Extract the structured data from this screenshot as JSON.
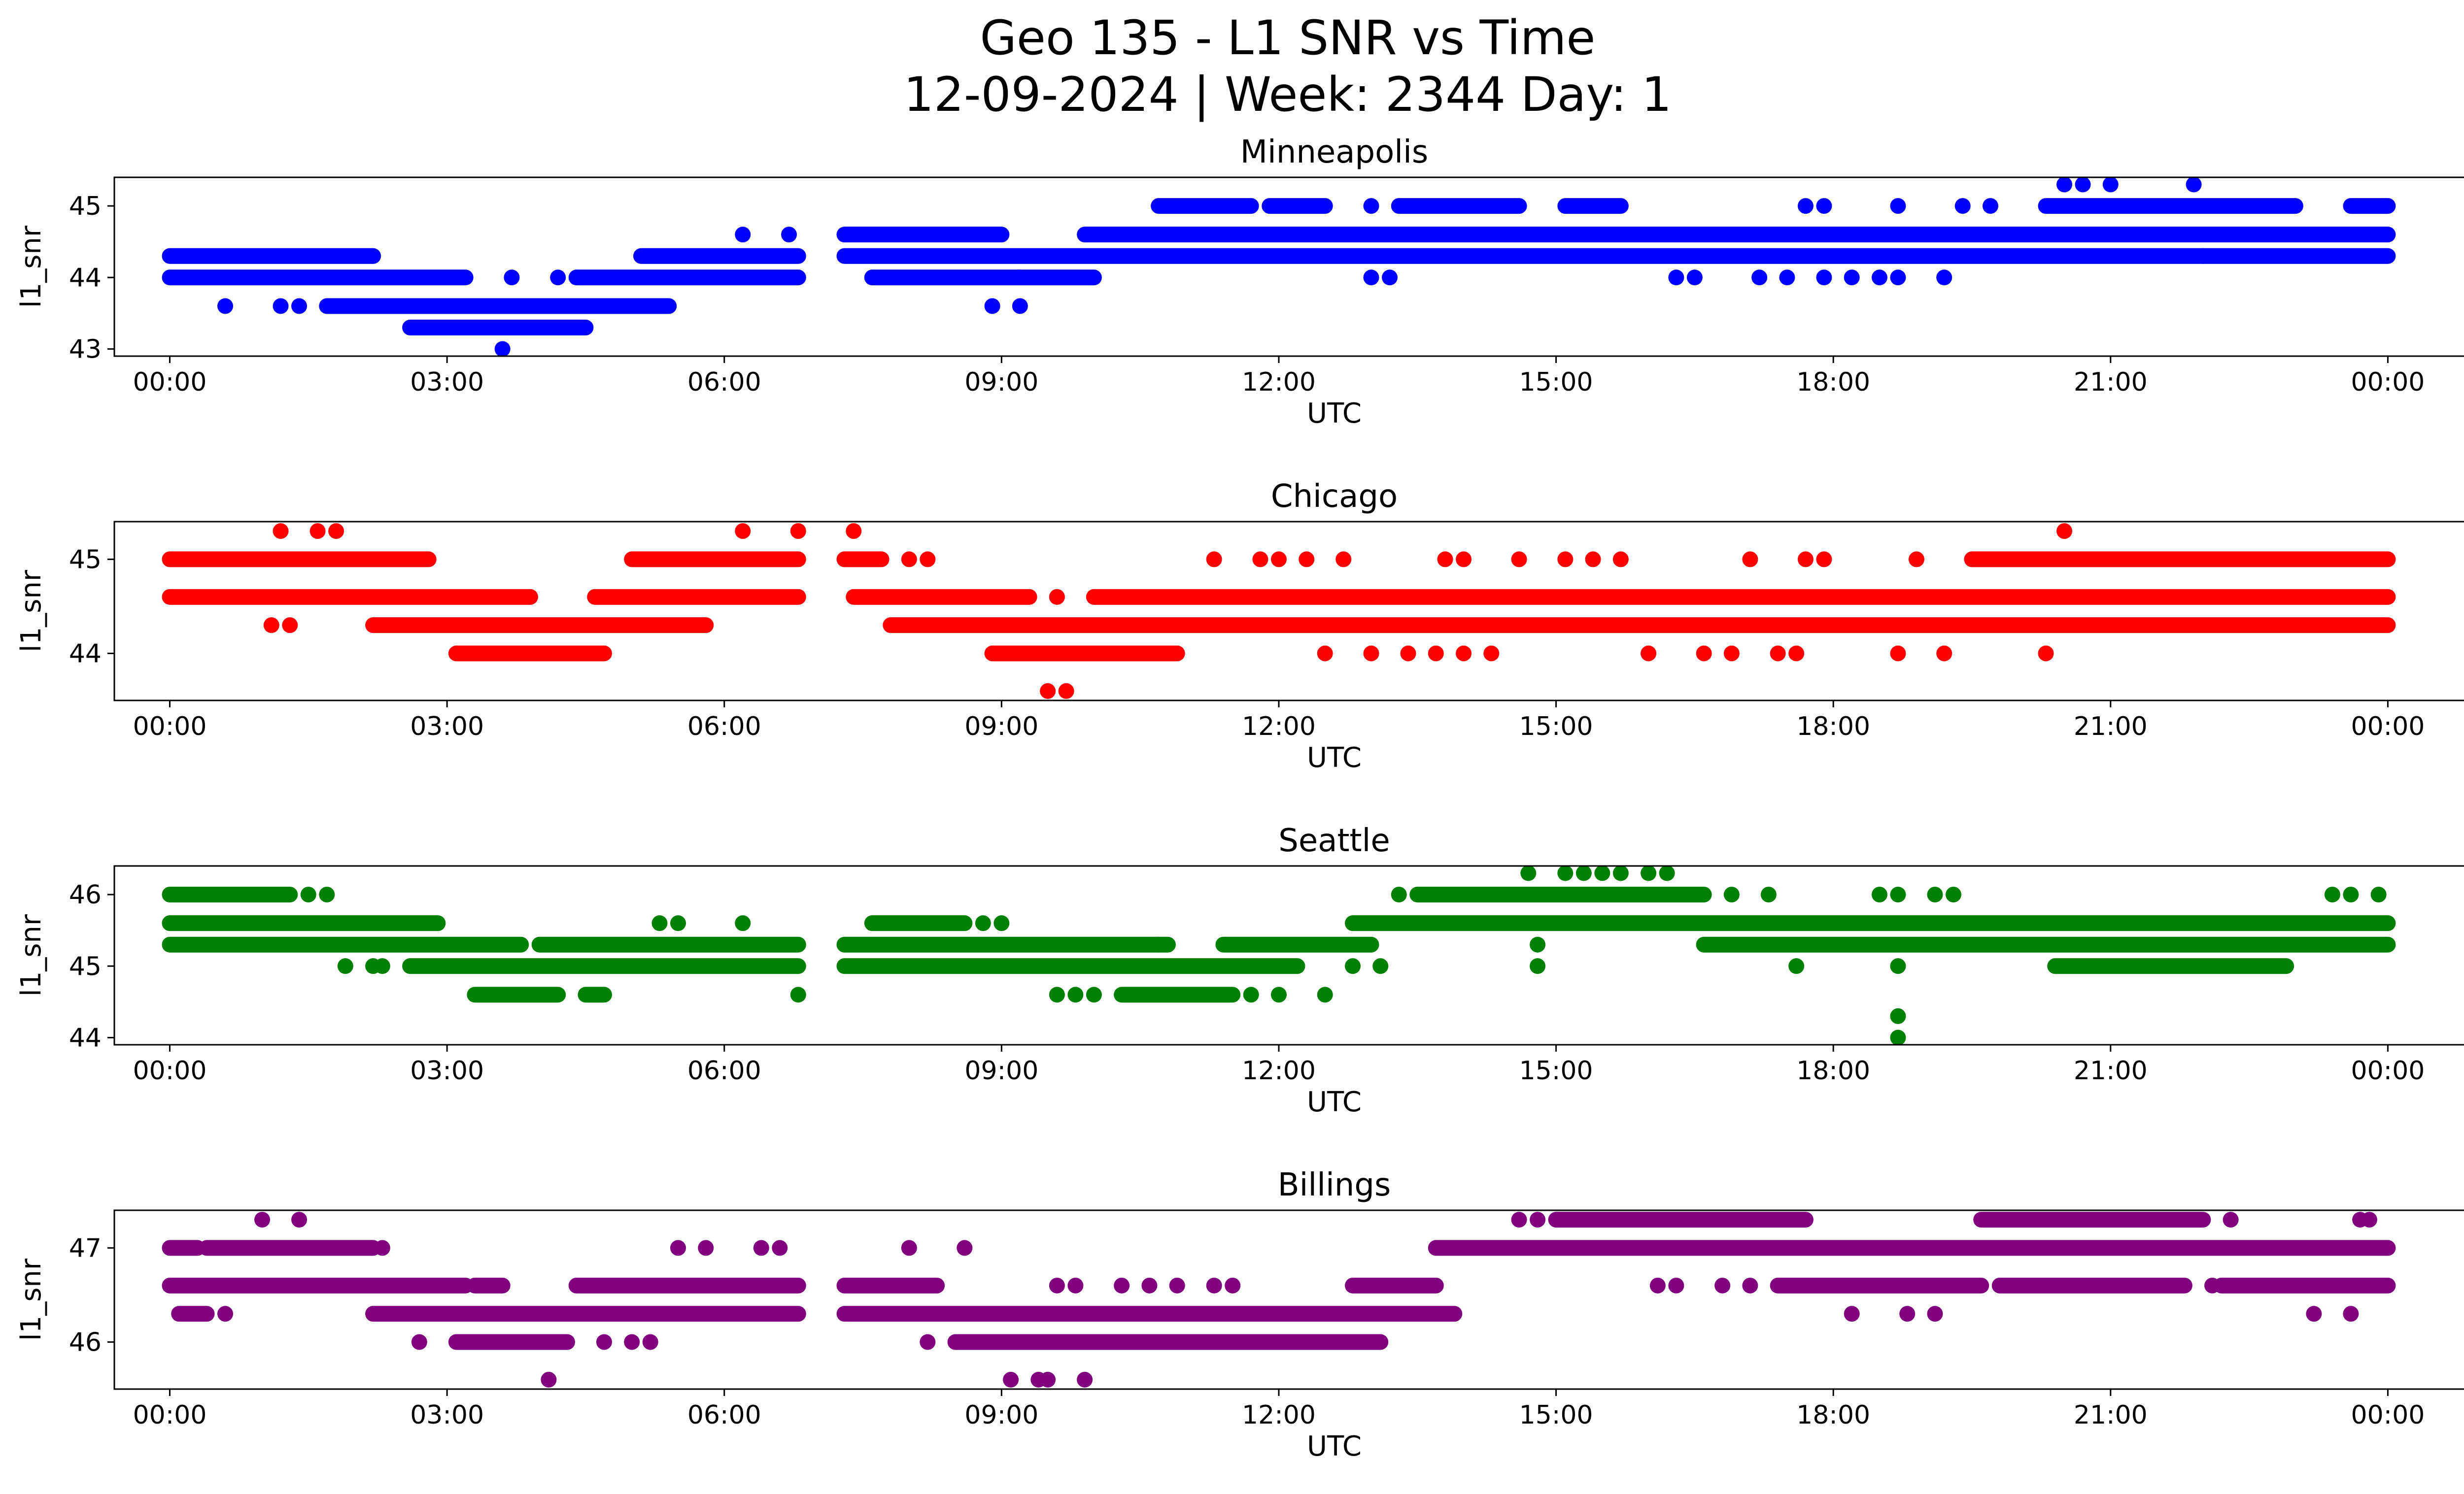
{
  "figure": {
    "title_line1": "Geo 135 - L1 SNR vs Time",
    "title_line2": "12-09-2024 | Week: 2344 Day: 1"
  },
  "chart_data": [
    {
      "type": "scatter",
      "title": "Minneapolis",
      "xlabel": "UTC",
      "ylabel": "l1_snr",
      "color": "#0000ff",
      "x_unit": "hours UTC (0 = 00:00 on 12-09-2024)",
      "xlim": [
        -0.6,
        25.8
      ],
      "ylim": [
        42.9,
        45.4
      ],
      "x_ticks": [
        "00:00",
        "03:00",
        "06:00",
        "09:00",
        "12:00",
        "15:00",
        "18:00",
        "21:00",
        "00:00"
      ],
      "y_ticks": [
        43,
        44,
        45
      ],
      "segments": [
        {
          "y": 44.3,
          "x": [
            [
              0.0,
              2.2
            ],
            [
              5.1,
              6.8
            ],
            [
              7.3,
              24.0
            ]
          ]
        },
        {
          "y": 44.0,
          "x": [
            [
              0.0,
              3.2
            ],
            [
              4.4,
              6.8
            ],
            [
              7.6,
              9.2
            ],
            [
              9.2,
              10.0
            ]
          ]
        },
        {
          "y": 43.6,
          "x": [
            [
              1.7,
              5.4
            ]
          ]
        },
        {
          "y": 43.3,
          "x": [
            [
              2.6,
              4.5
            ]
          ]
        },
        {
          "y": 44.6,
          "x": [
            [
              7.3,
              9.0
            ],
            [
              9.9,
              24.0
            ]
          ]
        },
        {
          "y": 45.0,
          "x": [
            [
              10.7,
              11.7
            ],
            [
              11.9,
              12.5
            ],
            [
              13.3,
              14.6
            ],
            [
              15.1,
              15.7
            ],
            [
              20.3,
              23.0
            ],
            [
              23.6,
              24.0
            ]
          ]
        }
      ],
      "points": [
        {
          "x": 0.6,
          "y": 43.6
        },
        {
          "x": 1.2,
          "y": 43.6
        },
        {
          "x": 1.4,
          "y": 43.6
        },
        {
          "x": 3.6,
          "y": 43.0
        },
        {
          "x": 3.7,
          "y": 44.0
        },
        {
          "x": 4.2,
          "y": 44.0
        },
        {
          "x": 6.2,
          "y": 44.6
        },
        {
          "x": 6.7,
          "y": 44.6
        },
        {
          "x": 8.9,
          "y": 43.6
        },
        {
          "x": 9.2,
          "y": 43.6
        },
        {
          "x": 13.0,
          "y": 45.0
        },
        {
          "x": 13.0,
          "y": 44.0
        },
        {
          "x": 13.2,
          "y": 44.0
        },
        {
          "x": 16.3,
          "y": 44.0
        },
        {
          "x": 16.5,
          "y": 44.0
        },
        {
          "x": 17.2,
          "y": 44.0
        },
        {
          "x": 17.5,
          "y": 44.0
        },
        {
          "x": 17.9,
          "y": 44.0
        },
        {
          "x": 18.2,
          "y": 44.0
        },
        {
          "x": 18.5,
          "y": 44.0
        },
        {
          "x": 18.7,
          "y": 44.0
        },
        {
          "x": 19.2,
          "y": 44.0
        },
        {
          "x": 17.7,
          "y": 45.0
        },
        {
          "x": 17.9,
          "y": 45.0
        },
        {
          "x": 18.7,
          "y": 45.0
        },
        {
          "x": 19.4,
          "y": 45.0
        },
        {
          "x": 19.7,
          "y": 45.0
        },
        {
          "x": 20.5,
          "y": 45.3
        },
        {
          "x": 20.7,
          "y": 45.3
        },
        {
          "x": 21.0,
          "y": 45.3
        },
        {
          "x": 21.9,
          "y": 45.3
        },
        {
          "x": 22.0,
          "y": 44.3
        }
      ]
    },
    {
      "type": "scatter",
      "title": "Chicago",
      "xlabel": "UTC",
      "ylabel": "l1_snr",
      "color": "#ff0000",
      "x_unit": "hours UTC (0 = 00:00 on 12-09-2024)",
      "xlim": [
        -0.6,
        25.8
      ],
      "ylim": [
        43.5,
        45.4
      ],
      "x_ticks": [
        "00:00",
        "03:00",
        "06:00",
        "09:00",
        "12:00",
        "15:00",
        "18:00",
        "21:00",
        "00:00"
      ],
      "y_ticks": [
        44,
        45
      ],
      "segments": [
        {
          "y": 45.0,
          "x": [
            [
              0.0,
              2.8
            ],
            [
              5.0,
              6.8
            ],
            [
              7.3,
              7.7
            ]
          ]
        },
        {
          "y": 44.6,
          "x": [
            [
              0.0,
              3.9
            ],
            [
              4.6,
              6.8
            ],
            [
              7.4,
              9.3
            ],
            [
              10.0,
              24.0
            ]
          ]
        },
        {
          "y": 44.3,
          "x": [
            [
              2.2,
              5.8
            ],
            [
              7.8,
              24.0
            ]
          ]
        },
        {
          "y": 44.0,
          "x": [
            [
              3.1,
              4.7
            ],
            [
              8.9,
              10.9
            ]
          ]
        },
        {
          "y": 45.0,
          "x": [
            [
              19.5,
              24.0
            ]
          ]
        }
      ],
      "points": [
        {
          "x": 1.2,
          "y": 45.3
        },
        {
          "x": 1.6,
          "y": 45.3
        },
        {
          "x": 1.8,
          "y": 45.3
        },
        {
          "x": 1.1,
          "y": 44.3
        },
        {
          "x": 1.3,
          "y": 44.3
        },
        {
          "x": 6.2,
          "y": 45.3
        },
        {
          "x": 6.8,
          "y": 45.3
        },
        {
          "x": 7.4,
          "y": 45.3
        },
        {
          "x": 8.0,
          "y": 45.0
        },
        {
          "x": 8.2,
          "y": 45.0
        },
        {
          "x": 9.5,
          "y": 43.6
        },
        {
          "x": 9.7,
          "y": 43.6
        },
        {
          "x": 9.6,
          "y": 44.6
        },
        {
          "x": 11.3,
          "y": 45.0
        },
        {
          "x": 11.8,
          "y": 45.0
        },
        {
          "x": 12.0,
          "y": 45.0
        },
        {
          "x": 12.3,
          "y": 45.0
        },
        {
          "x": 12.7,
          "y": 45.0
        },
        {
          "x": 13.8,
          "y": 45.0
        },
        {
          "x": 14.0,
          "y": 45.0
        },
        {
          "x": 14.6,
          "y": 45.0
        },
        {
          "x": 15.1,
          "y": 45.0
        },
        {
          "x": 15.4,
          "y": 45.0
        },
        {
          "x": 15.7,
          "y": 45.0
        },
        {
          "x": 17.1,
          "y": 45.0
        },
        {
          "x": 17.7,
          "y": 45.0
        },
        {
          "x": 17.9,
          "y": 45.0
        },
        {
          "x": 18.9,
          "y": 45.0
        },
        {
          "x": 12.5,
          "y": 44.0
        },
        {
          "x": 13.0,
          "y": 44.0
        },
        {
          "x": 13.4,
          "y": 44.0
        },
        {
          "x": 13.7,
          "y": 44.0
        },
        {
          "x": 14.0,
          "y": 44.0
        },
        {
          "x": 14.3,
          "y": 44.0
        },
        {
          "x": 16.0,
          "y": 44.0
        },
        {
          "x": 16.6,
          "y": 44.0
        },
        {
          "x": 16.9,
          "y": 44.0
        },
        {
          "x": 17.4,
          "y": 44.0
        },
        {
          "x": 17.6,
          "y": 44.0
        },
        {
          "x": 18.7,
          "y": 44.0
        },
        {
          "x": 19.2,
          "y": 44.0
        },
        {
          "x": 20.3,
          "y": 44.0
        },
        {
          "x": 20.5,
          "y": 45.3
        }
      ]
    },
    {
      "type": "scatter",
      "title": "Seattle",
      "xlabel": "UTC",
      "ylabel": "l1_snr",
      "color": "#008000",
      "x_unit": "hours UTC (0 = 00:00 on 12-09-2024)",
      "xlim": [
        -0.6,
        25.8
      ],
      "ylim": [
        43.9,
        46.4
      ],
      "x_ticks": [
        "00:00",
        "03:00",
        "06:00",
        "09:00",
        "12:00",
        "15:00",
        "18:00",
        "21:00",
        "00:00"
      ],
      "y_ticks": [
        44,
        45,
        46
      ],
      "segments": [
        {
          "y": 46.0,
          "x": [
            [
              0.0,
              1.3
            ],
            [
              13.5,
              16.6
            ]
          ]
        },
        {
          "y": 45.6,
          "x": [
            [
              0.0,
              2.9
            ],
            [
              7.6,
              8.6
            ],
            [
              12.8,
              24.0
            ]
          ]
        },
        {
          "y": 45.3,
          "x": [
            [
              0.0,
              3.8
            ],
            [
              4.0,
              6.8
            ],
            [
              7.3,
              10.8
            ],
            [
              11.4,
              13.0
            ],
            [
              16.6,
              24.0
            ]
          ]
        },
        {
          "y": 45.0,
          "x": [
            [
              2.6,
              6.8
            ],
            [
              7.3,
              12.2
            ],
            [
              20.4,
              22.9
            ]
          ]
        },
        {
          "y": 44.6,
          "x": [
            [
              3.3,
              4.2
            ],
            [
              4.5,
              4.7
            ],
            [
              10.3,
              11.5
            ]
          ]
        }
      ],
      "points": [
        {
          "x": 1.5,
          "y": 46.0
        },
        {
          "x": 1.7,
          "y": 46.0
        },
        {
          "x": 1.9,
          "y": 45.0
        },
        {
          "x": 2.2,
          "y": 45.0
        },
        {
          "x": 2.3,
          "y": 45.0
        },
        {
          "x": 5.3,
          "y": 45.6
        },
        {
          "x": 5.5,
          "y": 45.6
        },
        {
          "x": 6.2,
          "y": 45.6
        },
        {
          "x": 6.8,
          "y": 44.6
        },
        {
          "x": 8.8,
          "y": 45.6
        },
        {
          "x": 9.0,
          "y": 45.6
        },
        {
          "x": 9.6,
          "y": 44.6
        },
        {
          "x": 9.8,
          "y": 44.6
        },
        {
          "x": 10.0,
          "y": 44.6
        },
        {
          "x": 10.7,
          "y": 45.3
        },
        {
          "x": 11.7,
          "y": 44.6
        },
        {
          "x": 12.0,
          "y": 44.6
        },
        {
          "x": 12.5,
          "y": 44.6
        },
        {
          "x": 12.8,
          "y": 45.0
        },
        {
          "x": 13.1,
          "y": 45.0
        },
        {
          "x": 13.3,
          "y": 46.0
        },
        {
          "x": 14.7,
          "y": 46.3
        },
        {
          "x": 15.1,
          "y": 46.3
        },
        {
          "x": 15.3,
          "y": 46.3
        },
        {
          "x": 15.5,
          "y": 46.3
        },
        {
          "x": 15.7,
          "y": 46.3
        },
        {
          "x": 16.0,
          "y": 46.3
        },
        {
          "x": 16.2,
          "y": 46.3
        },
        {
          "x": 14.8,
          "y": 45.3
        },
        {
          "x": 14.8,
          "y": 45.0
        },
        {
          "x": 16.9,
          "y": 46.0
        },
        {
          "x": 17.3,
          "y": 46.0
        },
        {
          "x": 17.6,
          "y": 45.0
        },
        {
          "x": 18.5,
          "y": 46.0
        },
        {
          "x": 18.7,
          "y": 46.0
        },
        {
          "x": 19.1,
          "y": 46.0
        },
        {
          "x": 19.3,
          "y": 46.0
        },
        {
          "x": 18.7,
          "y": 45.0
        },
        {
          "x": 18.7,
          "y": 44.3
        },
        {
          "x": 18.7,
          "y": 44.0
        },
        {
          "x": 23.4,
          "y": 46.0
        },
        {
          "x": 23.6,
          "y": 46.0
        },
        {
          "x": 23.9,
          "y": 46.0
        }
      ]
    },
    {
      "type": "scatter",
      "title": "Billings",
      "xlabel": "UTC",
      "ylabel": "l1_snr",
      "color": "#800080",
      "x_unit": "hours UTC (0 = 00:00 on 12-09-2024)",
      "xlim": [
        -0.6,
        25.8
      ],
      "ylim": [
        45.5,
        47.4
      ],
      "x_ticks": [
        "00:00",
        "03:00",
        "06:00",
        "09:00",
        "12:00",
        "15:00",
        "18:00",
        "21:00",
        "00:00"
      ],
      "y_ticks": [
        46,
        47
      ],
      "segments": [
        {
          "y": 47.0,
          "x": [
            [
              0.0,
              0.3
            ],
            [
              0.4,
              2.2
            ],
            [
              13.7,
              24.0
            ]
          ]
        },
        {
          "y": 46.6,
          "x": [
            [
              0.0,
              3.2
            ],
            [
              3.3,
              3.6
            ],
            [
              4.4,
              6.8
            ],
            [
              7.3,
              8.3
            ],
            [
              12.8,
              13.7
            ],
            [
              17.4,
              19.6
            ],
            [
              19.8,
              21.8
            ],
            [
              22.2,
              24.0
            ]
          ]
        },
        {
          "y": 46.3,
          "x": [
            [
              0.1,
              0.4
            ],
            [
              2.2,
              6.8
            ],
            [
              7.3,
              13.9
            ]
          ]
        },
        {
          "y": 46.0,
          "x": [
            [
              3.1,
              4.3
            ],
            [
              8.5,
              13.1
            ]
          ]
        },
        {
          "y": 47.3,
          "x": [
            [
              15.0,
              17.7
            ],
            [
              19.6,
              22.0
            ]
          ]
        }
      ],
      "points": [
        {
          "x": 0.6,
          "y": 46.3
        },
        {
          "x": 1.0,
          "y": 47.3
        },
        {
          "x": 1.4,
          "y": 47.3
        },
        {
          "x": 2.3,
          "y": 47.0
        },
        {
          "x": 2.7,
          "y": 46.0
        },
        {
          "x": 4.1,
          "y": 45.6
        },
        {
          "x": 4.7,
          "y": 46.0
        },
        {
          "x": 5.0,
          "y": 46.0
        },
        {
          "x": 5.2,
          "y": 46.0
        },
        {
          "x": 5.5,
          "y": 47.0
        },
        {
          "x": 5.8,
          "y": 47.0
        },
        {
          "x": 6.4,
          "y": 47.0
        },
        {
          "x": 6.6,
          "y": 47.0
        },
        {
          "x": 8.0,
          "y": 47.0
        },
        {
          "x": 8.6,
          "y": 47.0
        },
        {
          "x": 8.2,
          "y": 46.0
        },
        {
          "x": 9.1,
          "y": 45.6
        },
        {
          "x": 9.4,
          "y": 45.6
        },
        {
          "x": 9.5,
          "y": 45.6
        },
        {
          "x": 9.9,
          "y": 45.6
        },
        {
          "x": 9.6,
          "y": 46.6
        },
        {
          "x": 9.8,
          "y": 46.6
        },
        {
          "x": 10.3,
          "y": 46.6
        },
        {
          "x": 10.6,
          "y": 46.6
        },
        {
          "x": 10.9,
          "y": 46.6
        },
        {
          "x": 11.3,
          "y": 46.6
        },
        {
          "x": 11.5,
          "y": 46.6
        },
        {
          "x": 14.6,
          "y": 47.3
        },
        {
          "x": 14.8,
          "y": 47.3
        },
        {
          "x": 16.1,
          "y": 46.6
        },
        {
          "x": 16.3,
          "y": 46.6
        },
        {
          "x": 16.8,
          "y": 46.6
        },
        {
          "x": 17.1,
          "y": 46.6
        },
        {
          "x": 18.2,
          "y": 46.3
        },
        {
          "x": 18.8,
          "y": 46.3
        },
        {
          "x": 19.1,
          "y": 46.3
        },
        {
          "x": 22.1,
          "y": 46.6
        },
        {
          "x": 23.2,
          "y": 46.3
        },
        {
          "x": 23.6,
          "y": 46.3
        },
        {
          "x": 23.7,
          "y": 47.3
        },
        {
          "x": 23.8,
          "y": 47.3
        },
        {
          "x": 22.3,
          "y": 47.3
        }
      ]
    }
  ]
}
